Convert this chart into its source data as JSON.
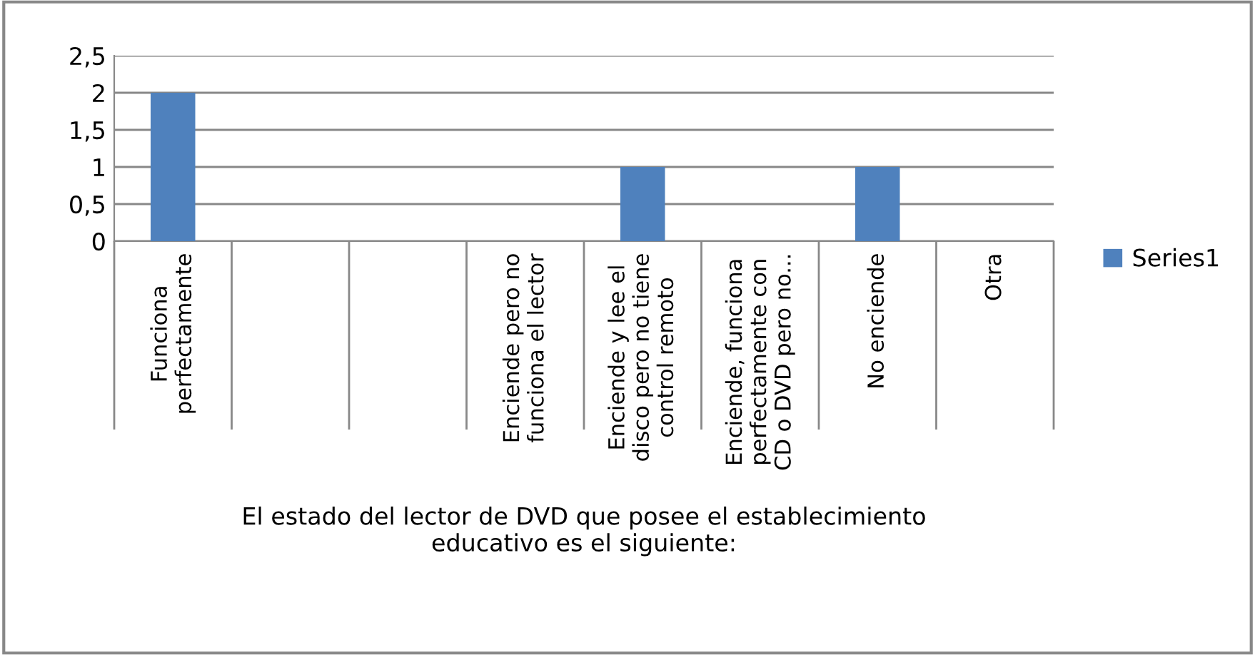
{
  "chart_data": {
    "type": "bar",
    "xlabel": "El estado del lector de DVD que posee el establecimiento\neducativo es el siguiente:",
    "categories": [
      "Funciona\nperfectamente",
      null,
      null,
      "Enciende pero no\nfunciona el lector",
      "Enciende y lee el\ndisco pero no tiene\ncontrol remoto",
      "Enciende, funciona\nperfectamente con\nCD o DVD pero no...",
      "No enciende",
      "Otra"
    ],
    "series": [
      {
        "name": "Series1",
        "color": "#4f81bd",
        "values": [
          2,
          0,
          0,
          0,
          1,
          0,
          1,
          0
        ]
      }
    ],
    "ylim": [
      0,
      2.5
    ],
    "yticks": [
      {
        "value": 0,
        "label": "0"
      },
      {
        "value": 0.5,
        "label": "0,5"
      },
      {
        "value": 1,
        "label": "1"
      },
      {
        "value": 1.5,
        "label": "1,5"
      },
      {
        "value": 2,
        "label": "2"
      },
      {
        "value": 2.5,
        "label": "2,5"
      }
    ],
    "grid": "y",
    "legend": "right"
  }
}
